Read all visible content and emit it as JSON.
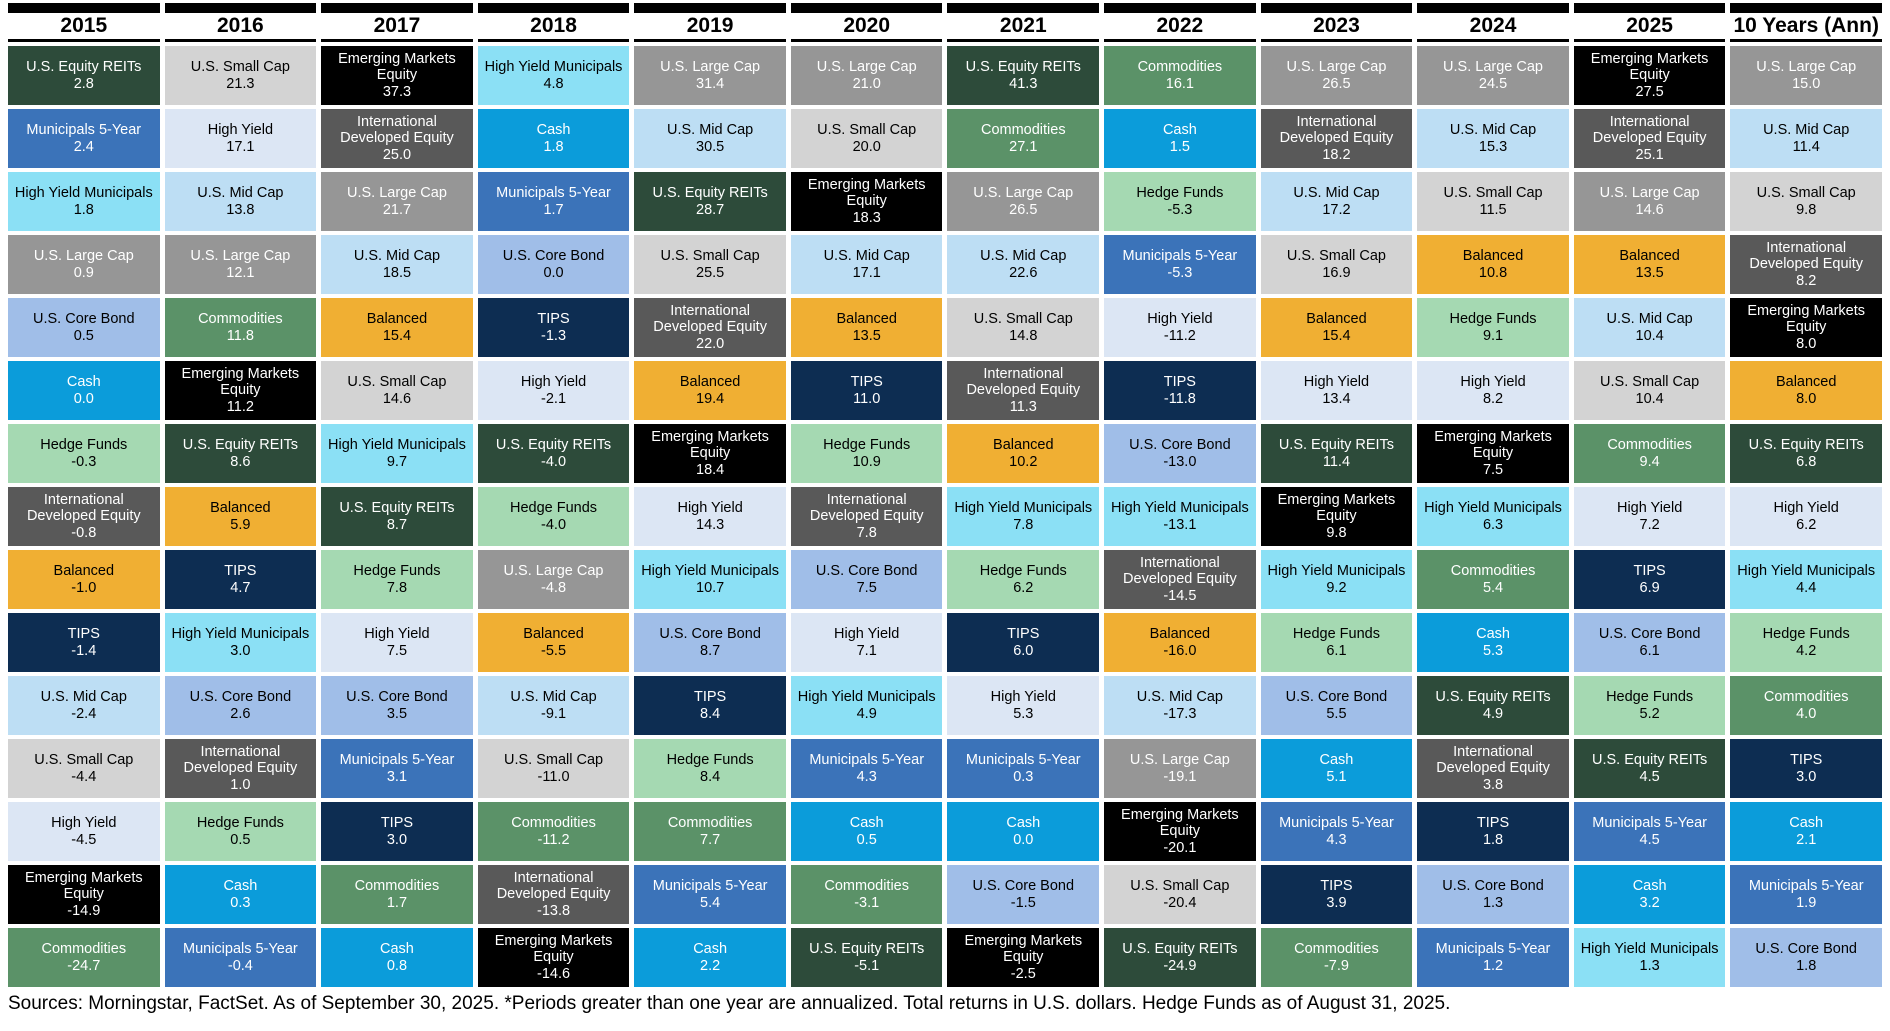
{
  "footer": {
    "text": "Sources: Morningstar, FactSet. As of September 30, 2025. *Periods greater than one year are annualized. Total returns in U.S. dollars. Hedge Funds as of August 31, 2025."
  },
  "asset_colors": {
    "U.S. Equity REITs": {
      "bg": "#2D4B3A",
      "fg": "#FFFFFF"
    },
    "Municipals 5-Year": {
      "bg": "#3B73B9",
      "fg": "#FFFFFF"
    },
    "High Yield Municipals": {
      "bg": "#8BE0F5",
      "fg": "#000000"
    },
    "U.S. Large Cap": {
      "bg": "#969696",
      "fg": "#FFFFFF"
    },
    "U.S. Core Bond": {
      "bg": "#A0BEE8",
      "fg": "#000000"
    },
    "Cash": {
      "bg": "#0B9CDA",
      "fg": "#FFFFFF"
    },
    "Hedge Funds": {
      "bg": "#A5D9B2",
      "fg": "#000000"
    },
    "International Developed Equity": {
      "bg": "#595959",
      "fg": "#FFFFFF"
    },
    "Balanced": {
      "bg": "#F0AF33",
      "fg": "#000000"
    },
    "TIPS": {
      "bg": "#0D2D52",
      "fg": "#FFFFFF"
    },
    "U.S. Mid Cap": {
      "bg": "#BDDEF4",
      "fg": "#000000"
    },
    "U.S. Small Cap": {
      "bg": "#D3D3D3",
      "fg": "#000000"
    },
    "High Yield": {
      "bg": "#DCE6F4",
      "fg": "#000000"
    },
    "Emerging Markets Equity": {
      "bg": "#000000",
      "fg": "#FFFFFF"
    },
    "Commodities": {
      "bg": "#5B9268",
      "fg": "#FFFFFF"
    }
  },
  "chart_data": {
    "type": "table",
    "title": "Asset class total returns by year (quilt chart)",
    "legend_position": "none",
    "grid": false,
    "columns": [
      {
        "label": "2015",
        "cells": [
          {
            "asset": "U.S. Equity REITs",
            "value": "2.8"
          },
          {
            "asset": "Municipals 5-Year",
            "value": "2.4"
          },
          {
            "asset": "High Yield Municipals",
            "value": "1.8"
          },
          {
            "asset": "U.S. Large Cap",
            "value": "0.9"
          },
          {
            "asset": "U.S. Core Bond",
            "value": "0.5"
          },
          {
            "asset": "Cash",
            "value": "0.0"
          },
          {
            "asset": "Hedge Funds",
            "value": "-0.3"
          },
          {
            "asset": "International Developed Equity",
            "value": "-0.8"
          },
          {
            "asset": "Balanced",
            "value": "-1.0"
          },
          {
            "asset": "TIPS",
            "value": "-1.4"
          },
          {
            "asset": "U.S. Mid Cap",
            "value": "-2.4"
          },
          {
            "asset": "U.S. Small Cap",
            "value": "-4.4"
          },
          {
            "asset": "High Yield",
            "value": "-4.5"
          },
          {
            "asset": "Emerging Markets Equity",
            "value": "-14.9"
          },
          {
            "asset": "Commodities",
            "value": "-24.7"
          }
        ]
      },
      {
        "label": "2016",
        "cells": [
          {
            "asset": "U.S. Small Cap",
            "value": "21.3"
          },
          {
            "asset": "High Yield",
            "value": "17.1"
          },
          {
            "asset": "U.S. Mid Cap",
            "value": "13.8"
          },
          {
            "asset": "U.S. Large Cap",
            "value": "12.1"
          },
          {
            "asset": "Commodities",
            "value": "11.8"
          },
          {
            "asset": "Emerging Markets Equity",
            "value": "11.2"
          },
          {
            "asset": "U.S. Equity REITs",
            "value": "8.6"
          },
          {
            "asset": "Balanced",
            "value": "5.9"
          },
          {
            "asset": "TIPS",
            "value": "4.7"
          },
          {
            "asset": "High Yield Municipals",
            "value": "3.0"
          },
          {
            "asset": "U.S. Core Bond",
            "value": "2.6"
          },
          {
            "asset": "International Developed Equity",
            "value": "1.0"
          },
          {
            "asset": "Hedge Funds",
            "value": "0.5"
          },
          {
            "asset": "Cash",
            "value": "0.3"
          },
          {
            "asset": "Municipals 5-Year",
            "value": "-0.4"
          }
        ]
      },
      {
        "label": "2017",
        "cells": [
          {
            "asset": "Emerging Markets Equity",
            "value": "37.3"
          },
          {
            "asset": "International Developed Equity",
            "value": "25.0"
          },
          {
            "asset": "U.S. Large Cap",
            "value": "21.7"
          },
          {
            "asset": "U.S. Mid Cap",
            "value": "18.5"
          },
          {
            "asset": "Balanced",
            "value": "15.4"
          },
          {
            "asset": "U.S. Small Cap",
            "value": "14.6"
          },
          {
            "asset": "High Yield Municipals",
            "value": "9.7"
          },
          {
            "asset": "U.S. Equity REITs",
            "value": "8.7"
          },
          {
            "asset": "Hedge Funds",
            "value": "7.8"
          },
          {
            "asset": "High Yield",
            "value": "7.5"
          },
          {
            "asset": "U.S. Core Bond",
            "value": "3.5"
          },
          {
            "asset": "Municipals 5-Year",
            "value": "3.1"
          },
          {
            "asset": "TIPS",
            "value": "3.0"
          },
          {
            "asset": "Commodities",
            "value": "1.7"
          },
          {
            "asset": "Cash",
            "value": "0.8"
          }
        ]
      },
      {
        "label": "2018",
        "cells": [
          {
            "asset": "High Yield Municipals",
            "value": "4.8"
          },
          {
            "asset": "Cash",
            "value": "1.8"
          },
          {
            "asset": "Municipals 5-Year",
            "value": "1.7"
          },
          {
            "asset": "U.S. Core Bond",
            "value": "0.0"
          },
          {
            "asset": "TIPS",
            "value": "-1.3"
          },
          {
            "asset": "High Yield",
            "value": "-2.1"
          },
          {
            "asset": "U.S. Equity REITs",
            "value": "-4.0"
          },
          {
            "asset": "Hedge Funds",
            "value": "-4.0"
          },
          {
            "asset": "U.S. Large Cap",
            "value": "-4.8"
          },
          {
            "asset": "Balanced",
            "value": "-5.5"
          },
          {
            "asset": "U.S. Mid Cap",
            "value": "-9.1"
          },
          {
            "asset": "U.S. Small Cap",
            "value": "-11.0"
          },
          {
            "asset": "Commodities",
            "value": "-11.2"
          },
          {
            "asset": "International Developed Equity",
            "value": "-13.8"
          },
          {
            "asset": "Emerging Markets Equity",
            "value": "-14.6"
          }
        ]
      },
      {
        "label": "2019",
        "cells": [
          {
            "asset": "U.S. Large Cap",
            "value": "31.4"
          },
          {
            "asset": "U.S. Mid Cap",
            "value": "30.5"
          },
          {
            "asset": "U.S. Equity REITs",
            "value": "28.7"
          },
          {
            "asset": "U.S. Small Cap",
            "value": "25.5"
          },
          {
            "asset": "International Developed Equity",
            "value": "22.0"
          },
          {
            "asset": "Balanced",
            "value": "19.4"
          },
          {
            "asset": "Emerging Markets Equity",
            "value": "18.4"
          },
          {
            "asset": "High Yield",
            "value": "14.3"
          },
          {
            "asset": "High Yield Municipals",
            "value": "10.7"
          },
          {
            "asset": "U.S. Core Bond",
            "value": "8.7"
          },
          {
            "asset": "TIPS",
            "value": "8.4"
          },
          {
            "asset": "Hedge Funds",
            "value": "8.4"
          },
          {
            "asset": "Commodities",
            "value": "7.7"
          },
          {
            "asset": "Municipals 5-Year",
            "value": "5.4"
          },
          {
            "asset": "Cash",
            "value": "2.2"
          }
        ]
      },
      {
        "label": "2020",
        "cells": [
          {
            "asset": "U.S. Large Cap",
            "value": "21.0"
          },
          {
            "asset": "U.S. Small Cap",
            "value": "20.0"
          },
          {
            "asset": "Emerging Markets Equity",
            "value": "18.3"
          },
          {
            "asset": "U.S. Mid Cap",
            "value": "17.1"
          },
          {
            "asset": "Balanced",
            "value": "13.5"
          },
          {
            "asset": "TIPS",
            "value": "11.0"
          },
          {
            "asset": "Hedge Funds",
            "value": "10.9"
          },
          {
            "asset": "International Developed Equity",
            "value": "7.8"
          },
          {
            "asset": "U.S. Core Bond",
            "value": "7.5"
          },
          {
            "asset": "High Yield",
            "value": "7.1"
          },
          {
            "asset": "High Yield Municipals",
            "value": "4.9"
          },
          {
            "asset": "Municipals 5-Year",
            "value": "4.3"
          },
          {
            "asset": "Cash",
            "value": "0.5"
          },
          {
            "asset": "Commodities",
            "value": "-3.1"
          },
          {
            "asset": "U.S. Equity REITs",
            "value": "-5.1"
          }
        ]
      },
      {
        "label": "2021",
        "cells": [
          {
            "asset": "U.S. Equity REITs",
            "value": "41.3"
          },
          {
            "asset": "Commodities",
            "value": "27.1"
          },
          {
            "asset": "U.S. Large Cap",
            "value": "26.5"
          },
          {
            "asset": "U.S. Mid Cap",
            "value": "22.6"
          },
          {
            "asset": "U.S. Small Cap",
            "value": "14.8"
          },
          {
            "asset": "International Developed Equity",
            "value": "11.3"
          },
          {
            "asset": "Balanced",
            "value": "10.2"
          },
          {
            "asset": "High Yield Municipals",
            "value": "7.8"
          },
          {
            "asset": "Hedge Funds",
            "value": "6.2"
          },
          {
            "asset": "TIPS",
            "value": "6.0"
          },
          {
            "asset": "High Yield",
            "value": "5.3"
          },
          {
            "asset": "Municipals 5-Year",
            "value": "0.3"
          },
          {
            "asset": "Cash",
            "value": "0.0"
          },
          {
            "asset": "U.S. Core Bond",
            "value": "-1.5"
          },
          {
            "asset": "Emerging Markets Equity",
            "value": "-2.5"
          }
        ]
      },
      {
        "label": "2022",
        "cells": [
          {
            "asset": "Commodities",
            "value": "16.1"
          },
          {
            "asset": "Cash",
            "value": "1.5"
          },
          {
            "asset": "Hedge Funds",
            "value": "-5.3"
          },
          {
            "asset": "Municipals 5-Year",
            "value": "-5.3"
          },
          {
            "asset": "High Yield",
            "value": "-11.2"
          },
          {
            "asset": "TIPS",
            "value": "-11.8"
          },
          {
            "asset": "U.S. Core Bond",
            "value": "-13.0"
          },
          {
            "asset": "High Yield Municipals",
            "value": "-13.1"
          },
          {
            "asset": "International Developed Equity",
            "value": "-14.5"
          },
          {
            "asset": "Balanced",
            "value": "-16.0"
          },
          {
            "asset": "U.S. Mid Cap",
            "value": "-17.3"
          },
          {
            "asset": "U.S. Large Cap",
            "value": "-19.1"
          },
          {
            "asset": "Emerging Markets Equity",
            "value": "-20.1"
          },
          {
            "asset": "U.S. Small Cap",
            "value": "-20.4"
          },
          {
            "asset": "U.S. Equity REITs",
            "value": "-24.9"
          }
        ]
      },
      {
        "label": "2023",
        "cells": [
          {
            "asset": "U.S. Large Cap",
            "value": "26.5"
          },
          {
            "asset": "International Developed Equity",
            "value": "18.2"
          },
          {
            "asset": "U.S. Mid Cap",
            "value": "17.2"
          },
          {
            "asset": "U.S. Small Cap",
            "value": "16.9"
          },
          {
            "asset": "Balanced",
            "value": "15.4"
          },
          {
            "asset": "High Yield",
            "value": "13.4"
          },
          {
            "asset": "U.S. Equity REITs",
            "value": "11.4"
          },
          {
            "asset": "Emerging Markets Equity",
            "value": "9.8"
          },
          {
            "asset": "High Yield Municipals",
            "value": "9.2"
          },
          {
            "asset": "Hedge Funds",
            "value": "6.1"
          },
          {
            "asset": "U.S. Core Bond",
            "value": "5.5"
          },
          {
            "asset": "Cash",
            "value": "5.1"
          },
          {
            "asset": "Municipals 5-Year",
            "value": "4.3"
          },
          {
            "asset": "TIPS",
            "value": "3.9"
          },
          {
            "asset": "Commodities",
            "value": "-7.9"
          }
        ]
      },
      {
        "label": "2024",
        "cells": [
          {
            "asset": "U.S. Large Cap",
            "value": "24.5"
          },
          {
            "asset": "U.S. Mid Cap",
            "value": "15.3"
          },
          {
            "asset": "U.S. Small Cap",
            "value": "11.5"
          },
          {
            "asset": "Balanced",
            "value": "10.8"
          },
          {
            "asset": "Hedge Funds",
            "value": "9.1"
          },
          {
            "asset": "High Yield",
            "value": "8.2"
          },
          {
            "asset": "Emerging Markets Equity",
            "value": "7.5"
          },
          {
            "asset": "High Yield Municipals",
            "value": "6.3"
          },
          {
            "asset": "Commodities",
            "value": "5.4"
          },
          {
            "asset": "Cash",
            "value": "5.3"
          },
          {
            "asset": "U.S. Equity REITs",
            "value": "4.9"
          },
          {
            "asset": "International Developed Equity",
            "value": "3.8"
          },
          {
            "asset": "TIPS",
            "value": "1.8"
          },
          {
            "asset": "U.S. Core Bond",
            "value": "1.3"
          },
          {
            "asset": "Municipals 5-Year",
            "value": "1.2"
          }
        ]
      },
      {
        "label": "2025",
        "cells": [
          {
            "asset": "Emerging Markets Equity",
            "value": "27.5"
          },
          {
            "asset": "International Developed Equity",
            "value": "25.1"
          },
          {
            "asset": "U.S. Large Cap",
            "value": "14.6"
          },
          {
            "asset": "Balanced",
            "value": "13.5"
          },
          {
            "asset": "U.S. Mid Cap",
            "value": "10.4"
          },
          {
            "asset": "U.S. Small Cap",
            "value": "10.4"
          },
          {
            "asset": "Commodities",
            "value": "9.4"
          },
          {
            "asset": "High Yield",
            "value": "7.2"
          },
          {
            "asset": "TIPS",
            "value": "6.9"
          },
          {
            "asset": "U.S. Core Bond",
            "value": "6.1"
          },
          {
            "asset": "Hedge Funds",
            "value": "5.2"
          },
          {
            "asset": "U.S. Equity REITs",
            "value": "4.5"
          },
          {
            "asset": "Municipals 5-Year",
            "value": "4.5"
          },
          {
            "asset": "Cash",
            "value": "3.2"
          },
          {
            "asset": "High Yield Municipals",
            "value": "1.3"
          }
        ]
      },
      {
        "label": "10 Years (Ann)",
        "cells": [
          {
            "asset": "U.S. Large Cap",
            "value": "15.0"
          },
          {
            "asset": "U.S. Mid Cap",
            "value": "11.4"
          },
          {
            "asset": "U.S. Small Cap",
            "value": "9.8"
          },
          {
            "asset": "International Developed Equity",
            "value": "8.2"
          },
          {
            "asset": "Emerging Markets Equity",
            "value": "8.0"
          },
          {
            "asset": "Balanced",
            "value": "8.0"
          },
          {
            "asset": "U.S. Equity REITs",
            "value": "6.8"
          },
          {
            "asset": "High Yield",
            "value": "6.2"
          },
          {
            "asset": "High Yield Municipals",
            "value": "4.4"
          },
          {
            "asset": "Hedge Funds",
            "value": "4.2"
          },
          {
            "asset": "Commodities",
            "value": "4.0"
          },
          {
            "asset": "TIPS",
            "value": "3.0"
          },
          {
            "asset": "Cash",
            "value": "2.1"
          },
          {
            "asset": "Municipals 5-Year",
            "value": "1.9"
          },
          {
            "asset": "U.S. Core Bond",
            "value": "1.8"
          }
        ]
      }
    ]
  }
}
